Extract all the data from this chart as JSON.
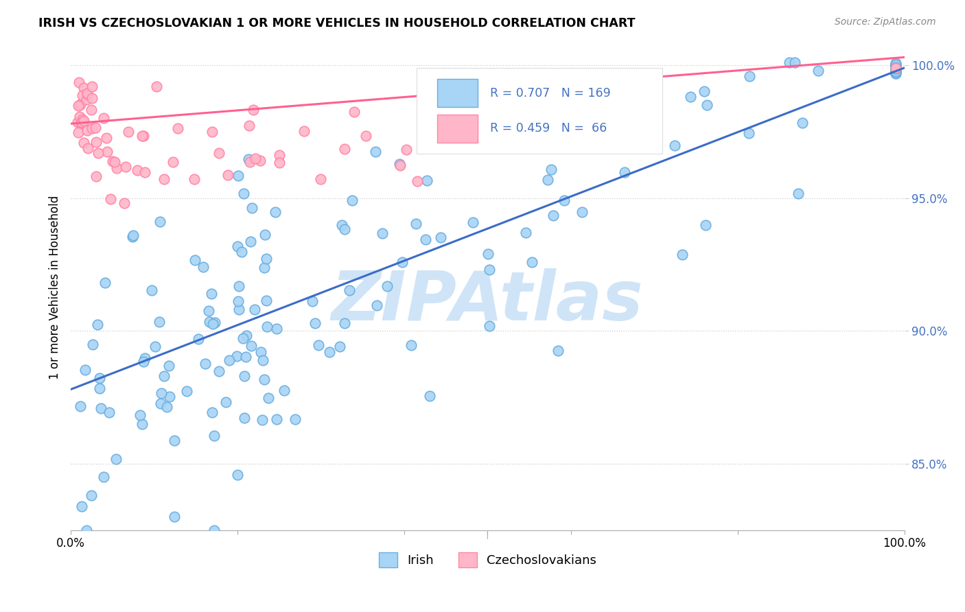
{
  "title": "IRISH VS CZECHOSLOVAKIAN 1 OR MORE VEHICLES IN HOUSEHOLD CORRELATION CHART",
  "source": "Source: ZipAtlas.com",
  "ylabel": "1 or more Vehicles in Household",
  "xlim": [
    0.0,
    1.0
  ],
  "ylim": [
    0.825,
    1.008
  ],
  "ytick_vals": [
    0.85,
    0.9,
    0.95,
    1.0
  ],
  "ytick_labels": [
    "85.0%",
    "90.0%",
    "95.0%",
    "100.0%"
  ],
  "irish_R": 0.707,
  "irish_N": 169,
  "czech_R": 0.459,
  "czech_N": 66,
  "irish_color": "#A8D4F5",
  "irish_edge_color": "#6AAEE0",
  "czech_color": "#FFB6C8",
  "czech_edge_color": "#FF85A8",
  "irish_line_color": "#3A6CC8",
  "czech_line_color": "#FF6090",
  "watermark": "ZIPAtlas",
  "watermark_color": "#D0E4F7",
  "irish_line_x0": 0.0,
  "irish_line_y0": 0.878,
  "irish_line_x1": 1.0,
  "irish_line_y1": 0.999,
  "czech_line_x0": 0.0,
  "czech_line_y0": 0.978,
  "czech_line_x1": 1.0,
  "czech_line_y1": 1.003
}
